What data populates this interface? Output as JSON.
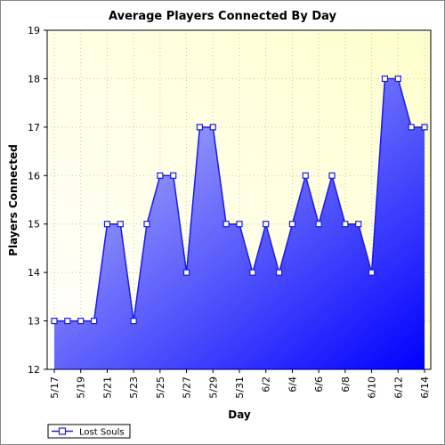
{
  "chart_data": {
    "type": "area",
    "title": "Average Players Connected By Day",
    "xlabel": "Day",
    "ylabel": "Players Connected",
    "ylim": [
      12,
      19
    ],
    "yticks": [
      12,
      13,
      14,
      15,
      16,
      17,
      18,
      19
    ],
    "grid": true,
    "legend_position": "bottom-left",
    "x": [
      "5/17",
      "5/18",
      "5/19",
      "5/20",
      "5/21",
      "5/22",
      "5/23",
      "5/24",
      "5/25",
      "5/26",
      "5/27",
      "5/28",
      "5/29",
      "5/30",
      "5/31",
      "6/1",
      "6/2",
      "6/3",
      "6/4",
      "6/5",
      "6/6",
      "6/7",
      "6/8",
      "6/9",
      "6/10",
      "6/11",
      "6/12",
      "6/13",
      "6/14"
    ],
    "x_tick_labels": [
      "5/17",
      "5/19",
      "5/21",
      "5/23",
      "5/25",
      "5/27",
      "5/29",
      "5/31",
      "6/2",
      "6/4",
      "6/6",
      "6/8",
      "6/10",
      "6/12",
      "6/14"
    ],
    "series": [
      {
        "name": "Lost Souls",
        "values": [
          13,
          13,
          13,
          13,
          15,
          15,
          13,
          15,
          16,
          16,
          14,
          17,
          17,
          15,
          15,
          14,
          15,
          14,
          15,
          16,
          15,
          16,
          15,
          15,
          14,
          18,
          18,
          17,
          17
        ]
      }
    ],
    "colors": {
      "plot_background_top": "#ffffcc",
      "plot_background_bottom": "#ffffff",
      "area_light": "#c4c8f8",
      "area_dark": "#0000ff",
      "line": "#1a1aee",
      "marker_fill": "#ffffff",
      "grid": "#c8c8a8"
    }
  }
}
